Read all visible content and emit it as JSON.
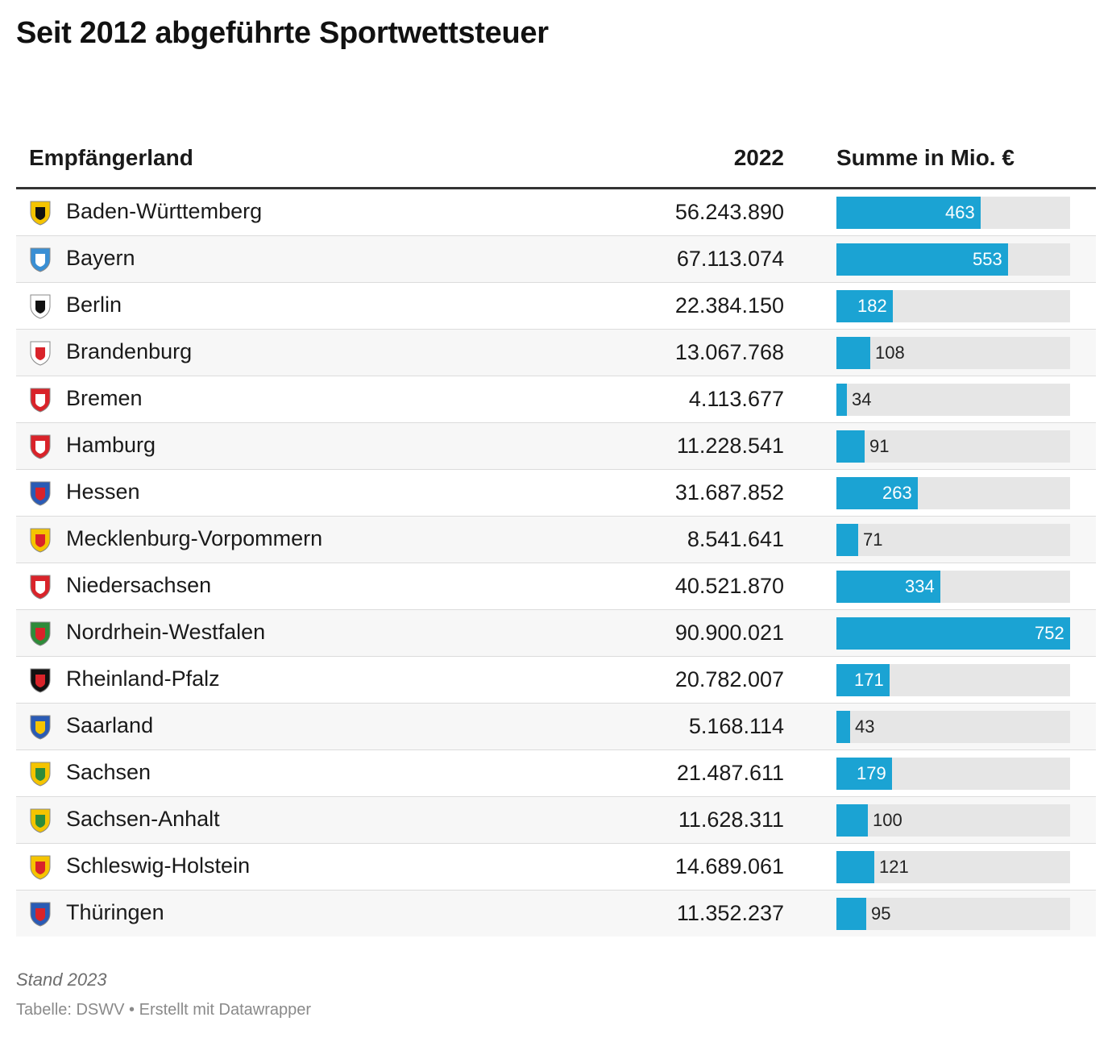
{
  "title": "Seit 2012 abgeführte Sportwettsteuer",
  "columns": {
    "land": "Empfängerland",
    "year": "2022",
    "sum": "Summe in Mio. €"
  },
  "colors": {
    "bar": "#1ba3d3",
    "bar_track": "#e6e6e6"
  },
  "chart_data": {
    "type": "table",
    "max_sum": 752,
    "rows": [
      {
        "land": "Baden-Württemberg",
        "value_2022": "56.243.890",
        "sum": 463,
        "crest_icon": "baden-wuerttemberg-crest-icon",
        "crest_colors": [
          "#f5c400",
          "#111111"
        ]
      },
      {
        "land": "Bayern",
        "value_2022": "67.113.074",
        "sum": 553,
        "crest_icon": "bayern-crest-icon",
        "crest_colors": [
          "#3a8fd4",
          "#ffffff"
        ]
      },
      {
        "land": "Berlin",
        "value_2022": "22.384.150",
        "sum": 182,
        "crest_icon": "berlin-crest-icon",
        "crest_colors": [
          "#ffffff",
          "#111111"
        ]
      },
      {
        "land": "Brandenburg",
        "value_2022": "13.067.768",
        "sum": 108,
        "crest_icon": "brandenburg-crest-icon",
        "crest_colors": [
          "#ffffff",
          "#d9232a"
        ]
      },
      {
        "land": "Bremen",
        "value_2022": "4.113.677",
        "sum": 34,
        "crest_icon": "bremen-crest-icon",
        "crest_colors": [
          "#d9232a",
          "#ffffff"
        ]
      },
      {
        "land": "Hamburg",
        "value_2022": "11.228.541",
        "sum": 91,
        "crest_icon": "hamburg-crest-icon",
        "crest_colors": [
          "#d9232a",
          "#ffffff"
        ]
      },
      {
        "land": "Hessen",
        "value_2022": "31.687.852",
        "sum": 263,
        "crest_icon": "hessen-crest-icon",
        "crest_colors": [
          "#2a5bb5",
          "#d9232a"
        ]
      },
      {
        "land": "Mecklenburg-Vorpommern",
        "value_2022": "8.541.641",
        "sum": 71,
        "crest_icon": "mecklenburg-vorpommern-crest-icon",
        "crest_colors": [
          "#f5c400",
          "#d9232a"
        ]
      },
      {
        "land": "Niedersachsen",
        "value_2022": "40.521.870",
        "sum": 334,
        "crest_icon": "niedersachsen-crest-icon",
        "crest_colors": [
          "#d9232a",
          "#ffffff"
        ]
      },
      {
        "land": "Nordrhein-Westfalen",
        "value_2022": "90.900.021",
        "sum": 752,
        "crest_icon": "nordrhein-westfalen-crest-icon",
        "crest_colors": [
          "#2e8b3a",
          "#d9232a"
        ]
      },
      {
        "land": "Rheinland-Pfalz",
        "value_2022": "20.782.007",
        "sum": 171,
        "crest_icon": "rheinland-pfalz-crest-icon",
        "crest_colors": [
          "#111111",
          "#d9232a"
        ]
      },
      {
        "land": "Saarland",
        "value_2022": "5.168.114",
        "sum": 43,
        "crest_icon": "saarland-crest-icon",
        "crest_colors": [
          "#2a5bb5",
          "#f5c400"
        ]
      },
      {
        "land": "Sachsen",
        "value_2022": "21.487.611",
        "sum": 179,
        "crest_icon": "sachsen-crest-icon",
        "crest_colors": [
          "#f5c400",
          "#2e8b3a"
        ]
      },
      {
        "land": "Sachsen-Anhalt",
        "value_2022": "11.628.311",
        "sum": 100,
        "crest_icon": "sachsen-anhalt-crest-icon",
        "crest_colors": [
          "#f5c400",
          "#2e8b3a"
        ]
      },
      {
        "land": "Schleswig-Holstein",
        "value_2022": "14.689.061",
        "sum": 121,
        "crest_icon": "schleswig-holstein-crest-icon",
        "crest_colors": [
          "#f5c400",
          "#d9232a"
        ]
      },
      {
        "land": "Thüringen",
        "value_2022": "11.352.237",
        "sum": 95,
        "crest_icon": "thueringen-crest-icon",
        "crest_colors": [
          "#2a5bb5",
          "#d9232a"
        ]
      }
    ]
  },
  "notes": "Stand 2023",
  "source": "Tabelle: DSWV • Erstellt mit Datawrapper"
}
